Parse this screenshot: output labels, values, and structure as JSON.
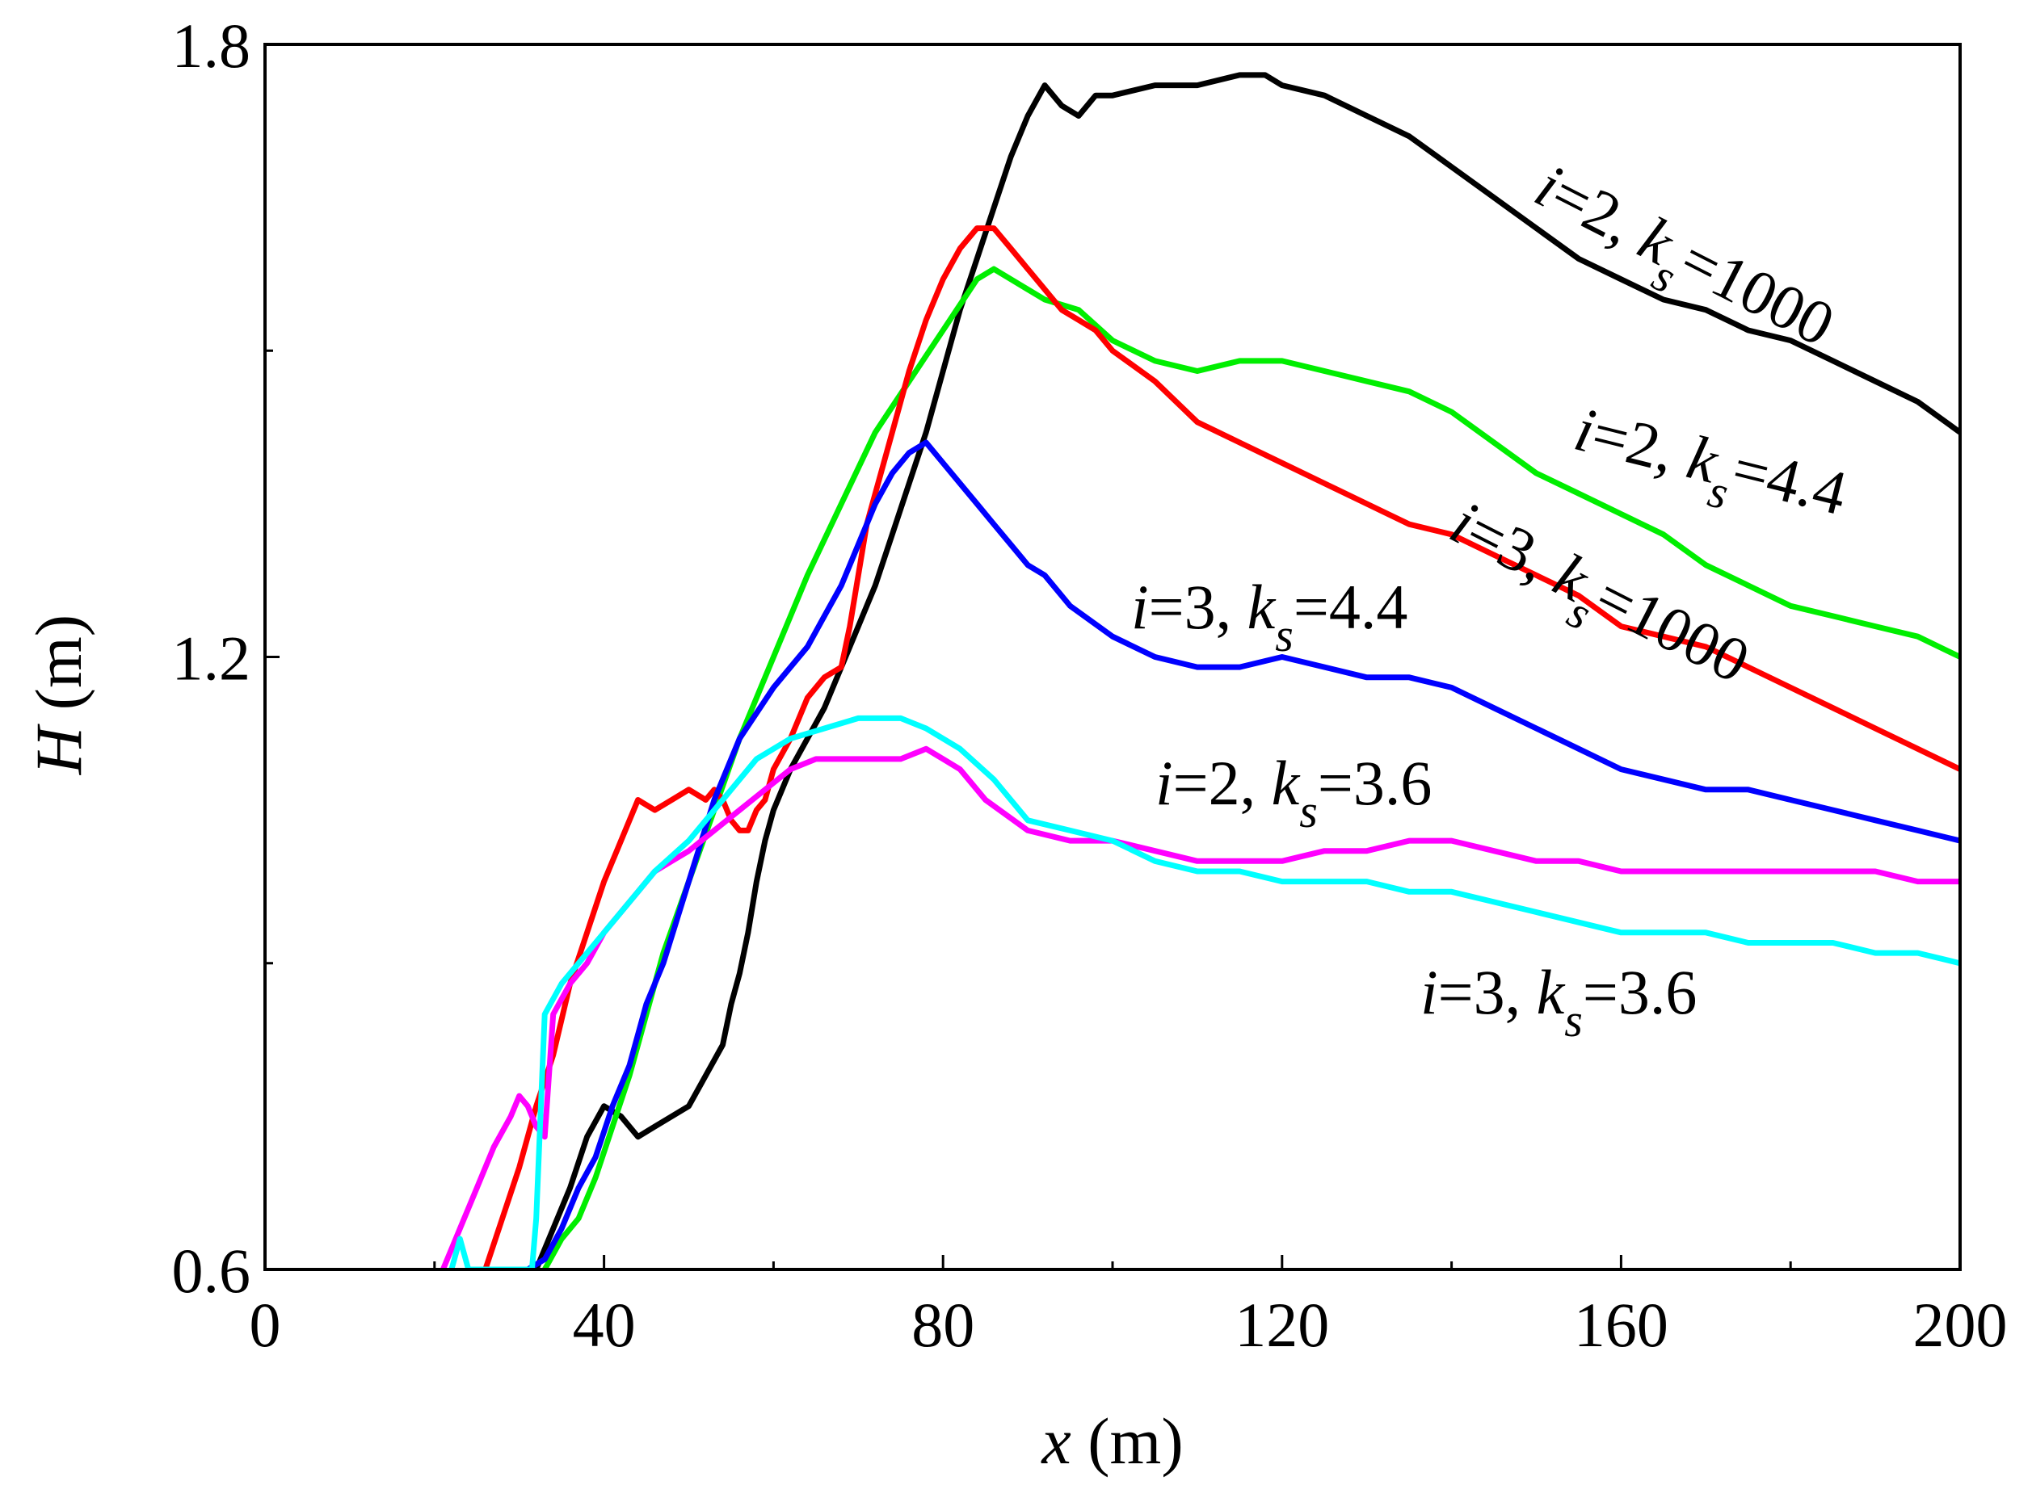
{
  "chart_data": {
    "type": "line",
    "title": "",
    "xlabel_var": "x",
    "xlabel_unit": " (m)",
    "ylabel_var": "H",
    "ylabel_unit": " (m)",
    "xlim": [
      0,
      200
    ],
    "ylim": [
      0.6,
      1.8
    ],
    "x_ticks": [
      0,
      40,
      80,
      120,
      160,
      200
    ],
    "x_minor_ticks": [
      20,
      60,
      100,
      140,
      180
    ],
    "y_ticks": [
      0.6,
      1.2,
      1.8
    ],
    "y_tick_labels": [
      "0.6",
      "1.2",
      "1.8"
    ],
    "y_minor_ticks": [
      0.9,
      1.5
    ],
    "grid": false,
    "series": [
      {
        "name": "i=2, k_s=1000",
        "color": "#000000",
        "label_i": "i",
        "label_mid": "=2, ",
        "label_k": "k",
        "label_sub": "s",
        "label_val": "=1000",
        "x": [
          32,
          34,
          36,
          38,
          40,
          42,
          44,
          46,
          48,
          50,
          52,
          54,
          55,
          56,
          57,
          58,
          59,
          60,
          62,
          64,
          66,
          68,
          70,
          72,
          74,
          76,
          78,
          80,
          82,
          84,
          86,
          88,
          90,
          92,
          94,
          96,
          98,
          100,
          105,
          110,
          115,
          118,
          120,
          125,
          130,
          135,
          140,
          145,
          150,
          155,
          160,
          165,
          170,
          175,
          180,
          185,
          190,
          195,
          200
        ],
        "values": [
          0.6,
          0.64,
          0.68,
          0.73,
          0.76,
          0.75,
          0.73,
          0.74,
          0.75,
          0.76,
          0.79,
          0.82,
          0.86,
          0.89,
          0.93,
          0.98,
          1.02,
          1.05,
          1.09,
          1.12,
          1.15,
          1.19,
          1.23,
          1.27,
          1.32,
          1.37,
          1.42,
          1.48,
          1.54,
          1.59,
          1.64,
          1.69,
          1.73,
          1.76,
          1.74,
          1.73,
          1.75,
          1.75,
          1.76,
          1.76,
          1.77,
          1.77,
          1.76,
          1.75,
          1.73,
          1.71,
          1.68,
          1.65,
          1.62,
          1.59,
          1.57,
          1.55,
          1.54,
          1.52,
          1.51,
          1.49,
          1.47,
          1.45,
          1.42
        ]
      },
      {
        "name": "i=2, k_s=4.4",
        "color": "#00ee00",
        "label_i": "i",
        "label_mid": "=2, ",
        "label_k": "k",
        "label_sub": "s",
        "label_val": "=4.4",
        "x": [
          33,
          35,
          37,
          39,
          41,
          43,
          45,
          47,
          50,
          53,
          56,
          60,
          64,
          68,
          72,
          76,
          80,
          84,
          86,
          88,
          92,
          96,
          100,
          105,
          110,
          115,
          120,
          125,
          130,
          135,
          140,
          145,
          150,
          155,
          160,
          165,
          170,
          175,
          180,
          185,
          190,
          195,
          200
        ],
        "values": [
          0.6,
          0.63,
          0.65,
          0.69,
          0.74,
          0.79,
          0.85,
          0.91,
          0.98,
          1.05,
          1.12,
          1.2,
          1.28,
          1.35,
          1.42,
          1.47,
          1.52,
          1.57,
          1.58,
          1.57,
          1.55,
          1.54,
          1.51,
          1.49,
          1.48,
          1.49,
          1.49,
          1.48,
          1.47,
          1.46,
          1.44,
          1.41,
          1.38,
          1.36,
          1.34,
          1.32,
          1.29,
          1.27,
          1.25,
          1.24,
          1.23,
          1.22,
          1.2
        ]
      },
      {
        "name": "i=3, k_s=1000",
        "color": "#ff0000",
        "label_i": "i",
        "label_mid": "=3, ",
        "label_k": "k",
        "label_sub": "s",
        "label_val": "=1000",
        "x": [
          26,
          28,
          30,
          32,
          34,
          36,
          38,
          40,
          42,
          44,
          46,
          48,
          50,
          52,
          53,
          54,
          55,
          56,
          57,
          58,
          59,
          60,
          62,
          64,
          66,
          68,
          69,
          70,
          71,
          72,
          74,
          76,
          78,
          80,
          82,
          84,
          86,
          88,
          90,
          92,
          94,
          96,
          98,
          100,
          105,
          110,
          115,
          120,
          125,
          130,
          135,
          140,
          145,
          150,
          155,
          160,
          165,
          170,
          175,
          180,
          185,
          190,
          195,
          200
        ],
        "values": [
          0.6,
          0.65,
          0.7,
          0.76,
          0.81,
          0.88,
          0.93,
          0.98,
          1.02,
          1.06,
          1.05,
          1.06,
          1.07,
          1.06,
          1.07,
          1.06,
          1.04,
          1.03,
          1.03,
          1.05,
          1.06,
          1.09,
          1.12,
          1.16,
          1.18,
          1.19,
          1.23,
          1.28,
          1.33,
          1.36,
          1.42,
          1.48,
          1.53,
          1.57,
          1.6,
          1.62,
          1.62,
          1.6,
          1.58,
          1.56,
          1.54,
          1.53,
          1.52,
          1.5,
          1.47,
          1.43,
          1.41,
          1.39,
          1.37,
          1.35,
          1.33,
          1.32,
          1.3,
          1.28,
          1.26,
          1.23,
          1.22,
          1.21,
          1.19,
          1.17,
          1.15,
          1.13,
          1.11,
          1.09
        ]
      },
      {
        "name": "i=3, k_s=4.4",
        "color": "#0000ff",
        "label_i": "i",
        "label_mid": "=3, ",
        "label_k": "k",
        "label_sub": "s",
        "label_val": "=4.4",
        "x": [
          29,
          31,
          33,
          35,
          37,
          39,
          41,
          43,
          45,
          47,
          50,
          53,
          56,
          60,
          62,
          64,
          66,
          68,
          70,
          72,
          74,
          76,
          78,
          80,
          82,
          84,
          86,
          88,
          90,
          92,
          95,
          100,
          105,
          110,
          115,
          120,
          125,
          130,
          135,
          140,
          145,
          150,
          155,
          160,
          165,
          170,
          175,
          180,
          185,
          190,
          195,
          200
        ],
        "values": [
          0.6,
          0.6,
          0.61,
          0.64,
          0.68,
          0.71,
          0.76,
          0.8,
          0.86,
          0.9,
          0.98,
          1.06,
          1.12,
          1.17,
          1.19,
          1.21,
          1.24,
          1.27,
          1.31,
          1.35,
          1.38,
          1.4,
          1.41,
          1.39,
          1.37,
          1.35,
          1.33,
          1.31,
          1.29,
          1.28,
          1.25,
          1.22,
          1.2,
          1.19,
          1.19,
          1.2,
          1.19,
          1.18,
          1.18,
          1.17,
          1.15,
          1.13,
          1.11,
          1.09,
          1.08,
          1.07,
          1.07,
          1.06,
          1.05,
          1.04,
          1.03,
          1.02
        ]
      },
      {
        "name": "i=2, k_s=3.6",
        "color": "#ff00ff",
        "label_i": "i",
        "label_mid": "=2, ",
        "label_k": "k",
        "label_sub": "s",
        "label_val": "=3.6",
        "x": [
          21,
          23,
          25,
          27,
          29,
          30,
          31,
          32,
          33,
          34,
          36,
          38,
          40,
          42,
          44,
          46,
          48,
          50,
          53,
          56,
          59,
          62,
          65,
          70,
          75,
          78,
          80,
          82,
          85,
          90,
          95,
          100,
          105,
          110,
          115,
          120,
          125,
          130,
          135,
          140,
          145,
          150,
          155,
          160,
          165,
          170,
          175,
          180,
          185,
          190,
          195,
          200
        ],
        "values": [
          0.6,
          0.64,
          0.68,
          0.72,
          0.75,
          0.77,
          0.76,
          0.74,
          0.73,
          0.85,
          0.88,
          0.9,
          0.93,
          0.95,
          0.97,
          0.99,
          1.0,
          1.01,
          1.03,
          1.05,
          1.07,
          1.09,
          1.1,
          1.1,
          1.1,
          1.11,
          1.1,
          1.09,
          1.06,
          1.03,
          1.02,
          1.02,
          1.01,
          1.0,
          1.0,
          1.0,
          1.01,
          1.01,
          1.02,
          1.02,
          1.01,
          1.0,
          1.0,
          0.99,
          0.99,
          0.99,
          0.99,
          0.99,
          0.99,
          0.99,
          0.98,
          0.98
        ]
      },
      {
        "name": "i=3, k_s=3.6",
        "color": "#00ffff",
        "label_i": "i",
        "label_mid": "=3, ",
        "label_k": "k",
        "label_sub": "s",
        "label_val": "=3.6",
        "x": [
          22,
          23,
          24,
          25,
          26,
          27,
          28,
          29,
          30,
          31,
          31.5,
          32,
          32.5,
          33,
          35,
          38,
          40,
          43,
          46,
          50,
          54,
          58,
          62,
          66,
          70,
          75,
          78,
          82,
          86,
          90,
          95,
          100,
          105,
          110,
          115,
          120,
          125,
          130,
          135,
          140,
          145,
          150,
          155,
          160,
          165,
          170,
          175,
          180,
          185,
          190,
          195,
          200
        ],
        "values": [
          0.6,
          0.63,
          0.6,
          0.6,
          0.6,
          0.6,
          0.6,
          0.6,
          0.6,
          0.6,
          0.6,
          0.65,
          0.75,
          0.85,
          0.88,
          0.91,
          0.93,
          0.96,
          0.99,
          1.02,
          1.06,
          1.1,
          1.12,
          1.13,
          1.14,
          1.14,
          1.13,
          1.11,
          1.08,
          1.04,
          1.03,
          1.02,
          1.0,
          0.99,
          0.99,
          0.98,
          0.98,
          0.98,
          0.97,
          0.97,
          0.96,
          0.95,
          0.94,
          0.93,
          0.93,
          0.93,
          0.92,
          0.92,
          0.92,
          0.91,
          0.91,
          0.9
        ]
      }
    ]
  }
}
